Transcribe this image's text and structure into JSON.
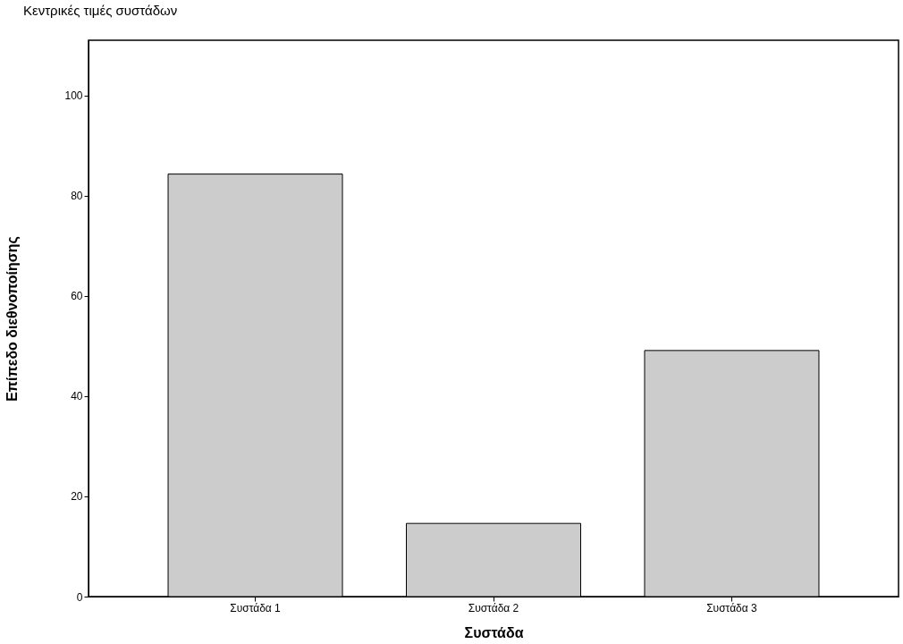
{
  "chart_data": {
    "type": "bar",
    "title": "Κεντρικές τιμές συστάδων",
    "xlabel": "Συστάδα",
    "ylabel": "Επίπεδο διεθνοποίησης",
    "categories": [
      "Συστάδα 1",
      "Συστάδα 2",
      "Συστάδα 3"
    ],
    "values": [
      84.3,
      14.6,
      49.1
    ],
    "color": "#cccccc",
    "ylim": [
      0,
      111
    ],
    "yticks": [
      0,
      20,
      40,
      60,
      80,
      100
    ],
    "grid": false
  }
}
